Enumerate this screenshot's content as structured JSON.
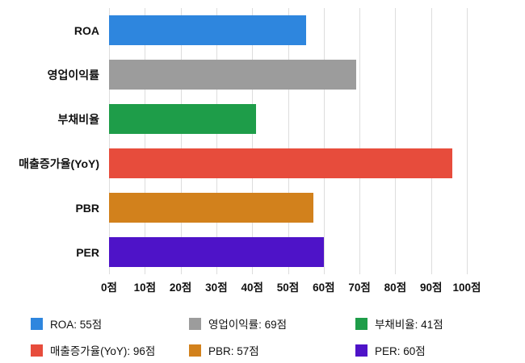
{
  "chart_data": {
    "type": "bar",
    "orientation": "horizontal",
    "title": "",
    "categories": [
      "ROA",
      "영업이익률",
      "부채비율",
      "매출증가율(YoY)",
      "PBR",
      "PER"
    ],
    "values": [
      55,
      69,
      41,
      96,
      57,
      60
    ],
    "colors": [
      "#2E86DE",
      "#9C9C9C",
      "#1E9D49",
      "#E74C3C",
      "#D2811C",
      "#4E13C8"
    ],
    "xlim": [
      0,
      100
    ],
    "x_ticks": [
      0,
      10,
      20,
      30,
      40,
      50,
      60,
      70,
      80,
      90,
      100
    ],
    "x_tick_labels": [
      "0점",
      "10점",
      "20점",
      "30점",
      "40점",
      "50점",
      "60점",
      "70점",
      "80점",
      "90점",
      "100점"
    ],
    "grid": true,
    "gridline_color": "#dddddd",
    "legend_position": "bottom",
    "legend": [
      {
        "label": "ROA: 55점",
        "color": "#2E86DE"
      },
      {
        "label": "영업이익률: 69점",
        "color": "#9C9C9C"
      },
      {
        "label": "부채비율: 41점",
        "color": "#1E9D49"
      },
      {
        "label": "매출증가율(YoY): 96점",
        "color": "#E74C3C"
      },
      {
        "label": "PBR: 57점",
        "color": "#D2811C"
      },
      {
        "label": "PER: 60점",
        "color": "#4E13C8"
      }
    ]
  }
}
